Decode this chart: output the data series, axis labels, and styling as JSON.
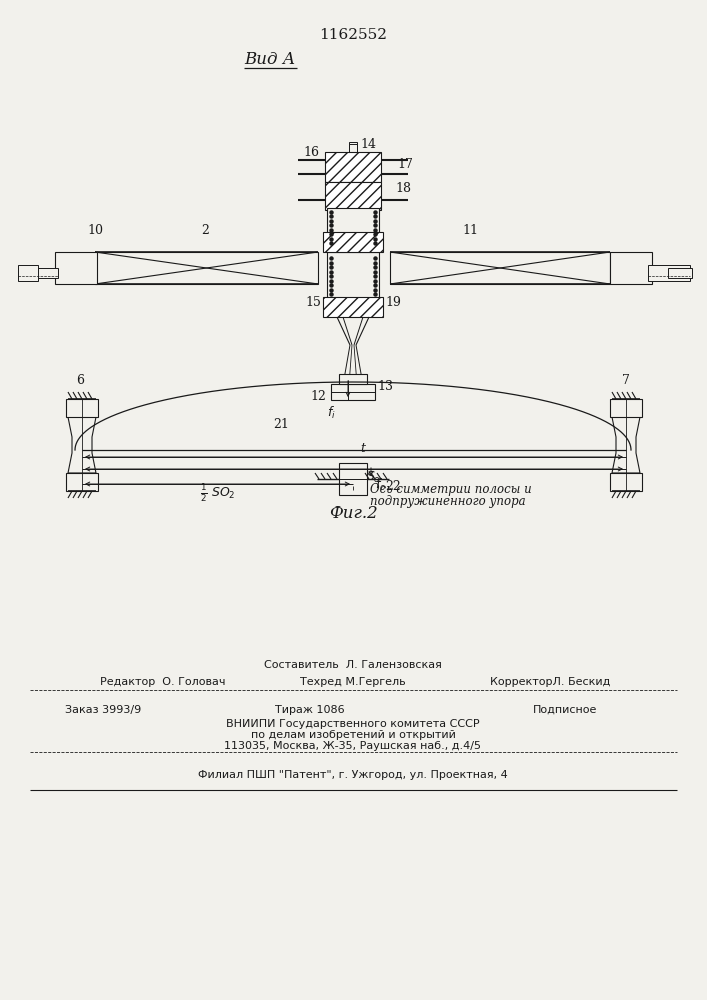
{
  "patent_number": "1162552",
  "view_label": "Вид А",
  "fig_label": "Фиг.2",
  "bg_color": "#f2f1ec",
  "lc": "#1a1a1a",
  "bottom": {
    "composer": "Составитель  Л. Галензовская",
    "editor": "Редактор  О. Головач",
    "techred": "Техред М.Гергель",
    "corrector": "КорректорЛ. Бескид",
    "order": "Заказ 3993/9",
    "tirazh": "Тираж 1086",
    "podpisnoe": "Подписное",
    "vnipi1": "ВНИИПИ Государственного комитета СССР",
    "vnipi2": "по делам изобретений и открытий",
    "vnipi3": "113035, Москва, Ж-35, Раушская наб., д.4/5",
    "filial": "Филиал ПШП \"Патент\", г. Ужгород, ул. Проектная, 4"
  }
}
